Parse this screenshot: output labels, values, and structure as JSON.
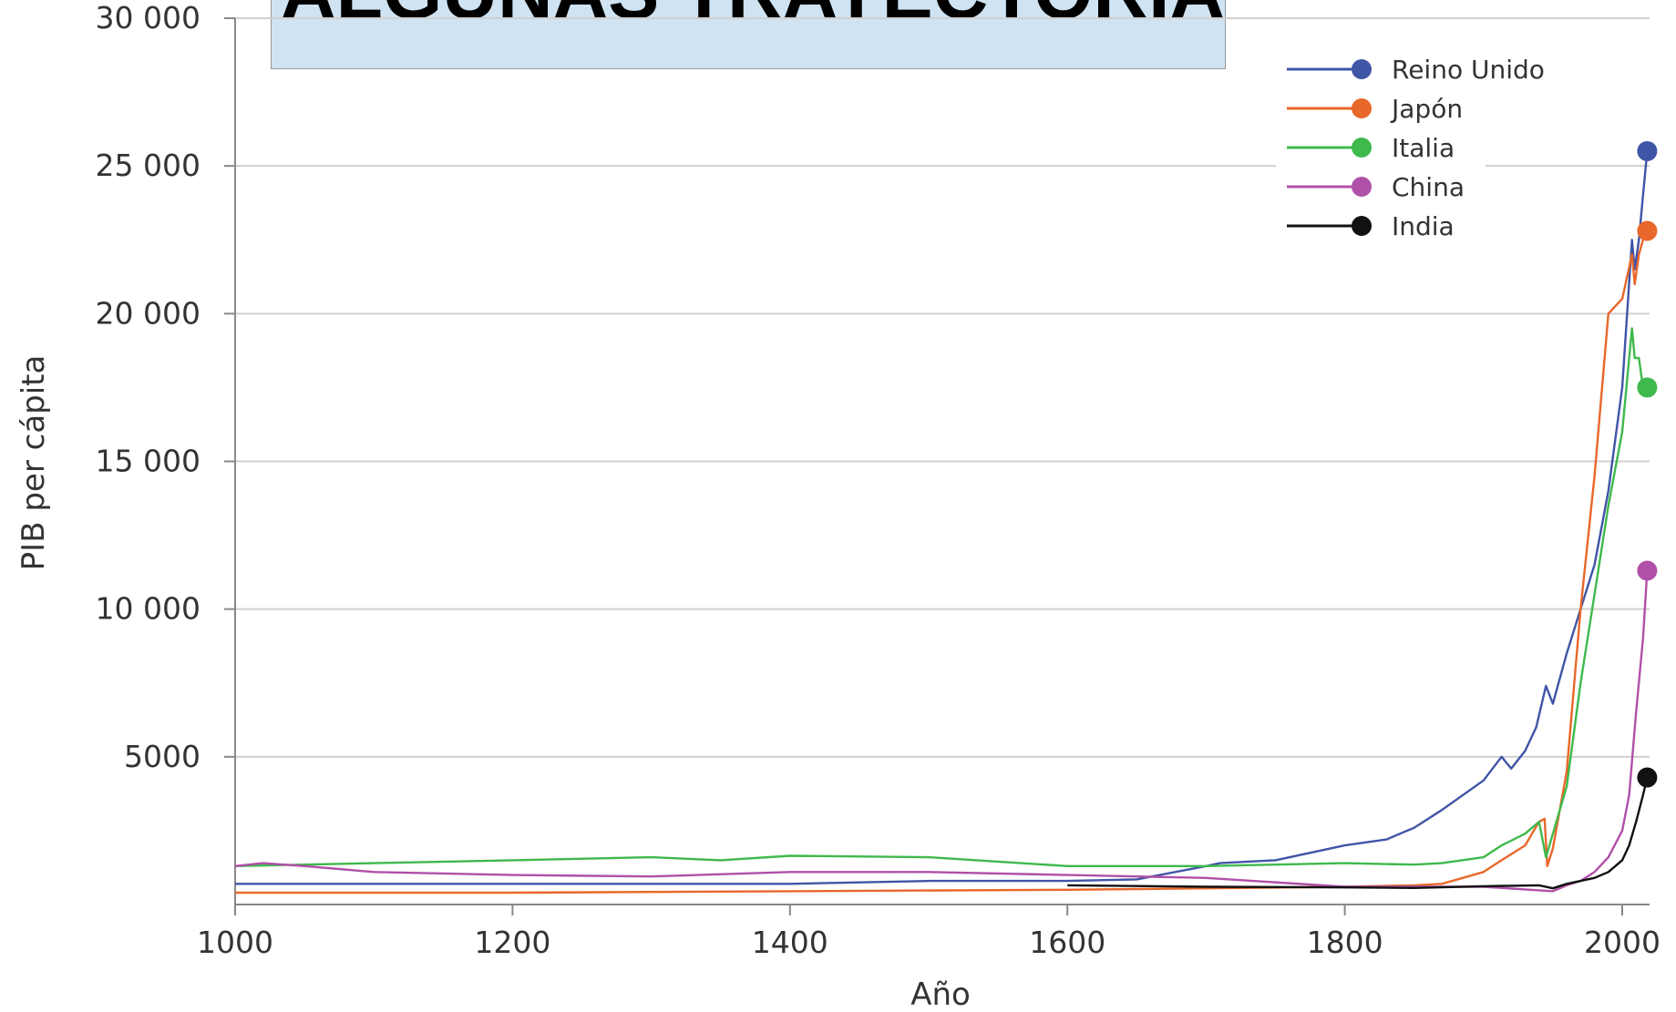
{
  "title_box": {
    "text": "ALGUNAS TRAYECTORIAS..."
  },
  "chart_data": {
    "type": "line",
    "xlabel": "Año",
    "ylabel": "PIB per cápita",
    "xlim": [
      1000,
      2018
    ],
    "ylim": [
      0,
      30000
    ],
    "x_ticks": [
      1000,
      1200,
      1400,
      1600,
      1800,
      2000
    ],
    "x_tick_labels": [
      "1000",
      "1200",
      "1400",
      "1600",
      "1800",
      "2000"
    ],
    "y_ticks": [
      5000,
      10000,
      15000,
      20000,
      25000,
      30000
    ],
    "y_tick_labels": [
      "5000",
      "10 000",
      "15 000",
      "20 000",
      "25 000",
      "30 000"
    ],
    "grid": "horizontal",
    "legend_position": "top-right",
    "series": [
      {
        "name": "Reino Unido",
        "color": "#3f55a6",
        "x": [
          1000,
          1100,
          1200,
          1300,
          1400,
          1500,
          1600,
          1650,
          1700,
          1710,
          1750,
          1800,
          1830,
          1850,
          1870,
          1900,
          1913,
          1920,
          1930,
          1938,
          1945,
          1950,
          1960,
          1970,
          1980,
          1990,
          2000,
          2007,
          2009,
          2012,
          2015,
          2018
        ],
        "y": [
          700,
          700,
          700,
          700,
          700,
          800,
          800,
          850,
          1300,
          1400,
          1500,
          2000,
          2200,
          2600,
          3200,
          4200,
          5000,
          4600,
          5200,
          6000,
          7400,
          6800,
          8500,
          10000,
          11500,
          14000,
          17500,
          22500,
          21500,
          22500,
          24000,
          25500
        ]
      },
      {
        "name": "Japón",
        "color": "#e8672a",
        "x": [
          1000,
          1200,
          1400,
          1600,
          1700,
          1800,
          1850,
          1870,
          1900,
          1913,
          1930,
          1940,
          1944,
          1946,
          1950,
          1960,
          1970,
          1980,
          1990,
          2000,
          2007,
          2009,
          2012,
          2015,
          2018
        ],
        "y": [
          400,
          400,
          450,
          500,
          550,
          600,
          650,
          700,
          1100,
          1500,
          2000,
          2800,
          2900,
          1300,
          1900,
          4500,
          10000,
          14500,
          20000,
          20500,
          22000,
          21000,
          22000,
          22500,
          22800
        ]
      },
      {
        "name": "Italia",
        "color": "#3fb94c",
        "x": [
          1000,
          1050,
          1100,
          1200,
          1300,
          1350,
          1400,
          1500,
          1600,
          1700,
          1750,
          1800,
          1850,
          1870,
          1900,
          1913,
          1930,
          1940,
          1945,
          1950,
          1960,
          1970,
          1980,
          1990,
          2000,
          2007,
          2009,
          2012,
          2015,
          2018
        ],
        "y": [
          1300,
          1350,
          1400,
          1500,
          1600,
          1500,
          1650,
          1600,
          1300,
          1300,
          1350,
          1400,
          1350,
          1400,
          1600,
          2000,
          2400,
          2800,
          1600,
          2400,
          4000,
          7500,
          10500,
          13500,
          16000,
          19500,
          18500,
          18500,
          17500,
          17500
        ]
      },
      {
        "name": "China",
        "color": "#b050a8",
        "x": [
          1000,
          1020,
          1050,
          1100,
          1200,
          1300,
          1400,
          1500,
          1600,
          1700,
          1800,
          1850,
          1900,
          1950,
          1960,
          1970,
          1980,
          1990,
          2000,
          2005,
          2010,
          2015,
          2018
        ],
        "y": [
          1300,
          1400,
          1300,
          1100,
          1000,
          950,
          1100,
          1100,
          1000,
          900,
          600,
          600,
          600,
          450,
          650,
          800,
          1100,
          1600,
          2500,
          3700,
          6500,
          9000,
          11300
        ]
      },
      {
        "name": "India",
        "color": "#111111",
        "x": [
          1600,
          1700,
          1800,
          1850,
          1900,
          1940,
          1950,
          1960,
          1970,
          1980,
          1990,
          2000,
          2005,
          2010,
          2015,
          2018
        ],
        "y": [
          650,
          600,
          580,
          560,
          620,
          650,
          550,
          700,
          800,
          900,
          1100,
          1500,
          2000,
          2800,
          3700,
          4300
        ]
      }
    ]
  }
}
